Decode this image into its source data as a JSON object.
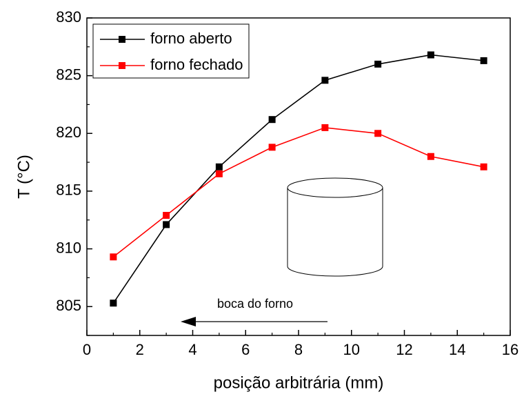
{
  "chart_data": {
    "type": "line",
    "x_label": "posição arbitrária (mm)",
    "y_label": "T (°C)",
    "x": [
      1,
      3,
      5,
      7,
      9,
      11,
      13,
      15
    ],
    "series": [
      {
        "name": "forno aberto",
        "color": "#000000",
        "values": [
          805.3,
          812.1,
          817.1,
          821.2,
          824.6,
          826.0,
          826.8,
          826.3
        ]
      },
      {
        "name": "forno fechado",
        "color": "#ff0000",
        "values": [
          809.3,
          812.9,
          816.5,
          818.8,
          820.5,
          820.0,
          818.0,
          817.1
        ]
      }
    ],
    "xlim": [
      0,
      16
    ],
    "xticks": [
      0,
      2,
      4,
      6,
      8,
      10,
      12,
      14,
      16
    ],
    "ylim": [
      802.5,
      830
    ],
    "yticks": [
      805,
      810,
      815,
      820,
      825,
      830
    ],
    "annotation": "boca do forno",
    "legend": "upper left"
  }
}
